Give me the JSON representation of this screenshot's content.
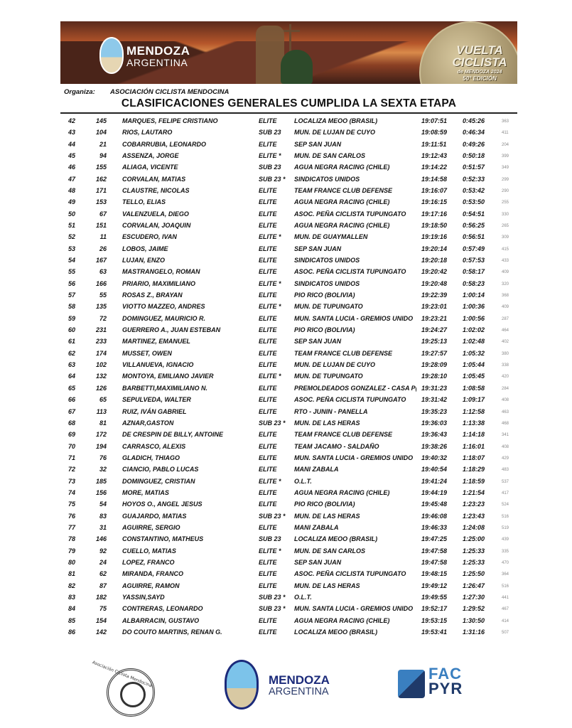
{
  "banner": {
    "logo_line1": "MENDOZA",
    "logo_line2": "ARGENTINA",
    "medal_line1": "VUELTA",
    "medal_line2": "CICLISTA",
    "medal_line3": "de MENDOZA 2024",
    "medal_line4": "50° EDICIÓN"
  },
  "header": {
    "organiza_label": "Organiza:",
    "organiza_value": "ASOCIACIÓN CICLISTA MENDOCINA",
    "title": "CLASIFICACIONES GENERALES CUMPLIDA LA SEXTA ETAPA"
  },
  "rows": [
    [
      "42",
      "145",
      "MARQUES, FELIPE CRISTIANO",
      "ELITE",
      "LOCALIZA MEOO (BRASIL)",
      "19:07:51",
      "0:45:26",
      "363"
    ],
    [
      "43",
      "104",
      "RIOS, LAUTARO",
      "SUB 23",
      "MUN. DE LUJAN DE CUYO",
      "19:08:59",
      "0:46:34",
      "411"
    ],
    [
      "44",
      "21",
      "COBARRUBIA, LEONARDO",
      "ELITE",
      "SEP SAN JUAN",
      "19:11:51",
      "0:49:26",
      "204"
    ],
    [
      "45",
      "94",
      "ASSENZA, JORGE",
      "ELITE *",
      "MUN. DE SAN CARLOS",
      "19:12:43",
      "0:50:18",
      "399"
    ],
    [
      "46",
      "155",
      "ALIAGA, VICENTE",
      "SUB 23",
      "AGUA NEGRA RACING (CHILE)",
      "19:14:22",
      "0:51:57",
      "349"
    ],
    [
      "47",
      "162",
      "CORVALAN, MATIAS",
      "SUB 23 *",
      "SINDICATOS UNIDOS",
      "19:14:58",
      "0:52:33",
      "299"
    ],
    [
      "48",
      "171",
      "CLAUSTRE, NICOLAS",
      "ELITE",
      "TEAM FRANCE CLUB DEFENSE",
      "19:16:07",
      "0:53:42",
      "290"
    ],
    [
      "49",
      "153",
      "TELLO, ELIAS",
      "ELITE",
      "AGUA NEGRA RACING (CHILE)",
      "19:16:15",
      "0:53:50",
      "255"
    ],
    [
      "50",
      "67",
      "VALENZUELA, DIEGO",
      "ELITE",
      "ASOC. PEÑA CICLISTA TUPUNGATO",
      "19:17:16",
      "0:54:51",
      "330"
    ],
    [
      "51",
      "151",
      "CORVALAN, JOAQUIN",
      "ELITE",
      "AGUA NEGRA RACING (CHILE)",
      "19:18:50",
      "0:56:25",
      "265"
    ],
    [
      "52",
      "11",
      "ESCUDERO, IVAN",
      "ELITE *",
      "MUN. DE GUAYMALLEN",
      "19:19:16",
      "0:56:51",
      "309"
    ],
    [
      "53",
      "26",
      "LOBOS, JAIME",
      "ELITE",
      "SEP SAN JUAN",
      "19:20:14",
      "0:57:49",
      "415"
    ],
    [
      "54",
      "167",
      "LUJAN, ENZO",
      "ELITE",
      "SINDICATOS UNIDOS",
      "19:20:18",
      "0:57:53",
      "433"
    ],
    [
      "55",
      "63",
      "MASTRANGELO, ROMAN",
      "ELITE",
      "ASOC. PEÑA CICLISTA TUPUNGATO",
      "19:20:42",
      "0:58:17",
      "409"
    ],
    [
      "56",
      "166",
      "PRIARIO, MAXIMILIANO",
      "ELITE *",
      "SINDICATOS UNIDOS",
      "19:20:48",
      "0:58:23",
      "320"
    ],
    [
      "57",
      "55",
      "ROSAS Z., BRAYAN",
      "ELITE",
      "PIO RICO (BOLIVIA)",
      "19:22:39",
      "1:00:14",
      "368"
    ],
    [
      "58",
      "135",
      "VIOTTO MAZZEO, ANDRES",
      "ELITE *",
      "MUN. DE TUPUNGATO",
      "19:23:01",
      "1:00:36",
      "409"
    ],
    [
      "59",
      "72",
      "DOMINGUEZ, MAURICIO R.",
      "ELITE",
      "MUN. SANTA LUCIA - GREMIOS UNIDO",
      "19:23:21",
      "1:00:56",
      "287"
    ],
    [
      "60",
      "231",
      "GUERRERO A., JUAN ESTEBAN",
      "ELITE",
      "PIO RICO (BOLIVIA)",
      "19:24:27",
      "1:02:02",
      "464"
    ],
    [
      "61",
      "233",
      "MARTINEZ, EMANUEL",
      "ELITE",
      "SEP SAN JUAN",
      "19:25:13",
      "1:02:48",
      "402"
    ],
    [
      "62",
      "174",
      "MUSSET, OWEN",
      "ELITE",
      "TEAM FRANCE CLUB DEFENSE",
      "19:27:57",
      "1:05:32",
      "380"
    ],
    [
      "63",
      "102",
      "VILLANUEVA, IGNACIO",
      "ELITE",
      "MUN. DE LUJAN DE CUYO",
      "19:28:09",
      "1:05:44",
      "338"
    ],
    [
      "64",
      "132",
      "MONTOYA, EMILIANO JAVIER",
      "ELITE *",
      "MUN. DE TUPUNGATO",
      "19:28:10",
      "1:05:45",
      "420"
    ],
    [
      "65",
      "126",
      "BARBETTI,MAXIMILIANO N.",
      "ELITE",
      "PREMOLDEADOS GONZALEZ - CASA P(",
      "19:31:23",
      "1:08:58",
      "284"
    ],
    [
      "66",
      "65",
      "SEPULVEDA, WALTER",
      "ELITE",
      "ASOC. PEÑA CICLISTA TUPUNGATO",
      "19:31:42",
      "1:09:17",
      "408"
    ],
    [
      "67",
      "113",
      "RUIZ, IVÁN GABRIEL",
      "ELITE",
      "RTO - JUNIN - PANELLA",
      "19:35:23",
      "1:12:58",
      "463"
    ],
    [
      "68",
      "81",
      "AZNAR,GASTON",
      "SUB 23 *",
      "MUN. DE LAS HERAS",
      "19:36:03",
      "1:13:38",
      "468"
    ],
    [
      "69",
      "172",
      "DE CRESPIN DE BILLY, ANTOINE",
      "ELITE",
      "TEAM FRANCE CLUB DEFENSE",
      "19:36:43",
      "1:14:18",
      "341"
    ],
    [
      "70",
      "194",
      "CARRASCO, ALEXIS",
      "ELITE",
      "TEAM JACAMO - SALDAÑO",
      "19:38:26",
      "1:16:01",
      "408"
    ],
    [
      "71",
      "76",
      "GLADICH, THIAGO",
      "ELITE",
      "MUN. SANTA LUCIA - GREMIOS UNIDO",
      "19:40:32",
      "1:18:07",
      "429"
    ],
    [
      "72",
      "32",
      "CIANCIO, PABLO LUCAS",
      "ELITE",
      "MANI ZABALA",
      "19:40:54",
      "1:18:29",
      "483"
    ],
    [
      "73",
      "185",
      "DOMINGUEZ, CRISTIAN",
      "ELITE *",
      "O.L.T.",
      "19:41:24",
      "1:18:59",
      "537"
    ],
    [
      "74",
      "156",
      "MORE, MATIAS",
      "ELITE",
      "AGUA NEGRA RACING (CHILE)",
      "19:44:19",
      "1:21:54",
      "417"
    ],
    [
      "75",
      "54",
      "HOYOS O., ANGEL JESUS",
      "ELITE",
      "PIO RICO (BOLIVIA)",
      "19:45:48",
      "1:23:23",
      "524"
    ],
    [
      "76",
      "83",
      "GUAJARDO, MATIAS",
      "SUB 23 *",
      "MUN. DE LAS HERAS",
      "19:46:08",
      "1:23:43",
      "516"
    ],
    [
      "77",
      "31",
      "AGUIRRE, SERGIO",
      "ELITE",
      "MANI ZABALA",
      "19:46:33",
      "1:24:08",
      "519"
    ],
    [
      "78",
      "146",
      "CONSTANTINO, MATHEUS",
      "SUB 23",
      "LOCALIZA MEOO (BRASIL)",
      "19:47:25",
      "1:25:00",
      "439"
    ],
    [
      "79",
      "92",
      "CUELLO, MATIAS",
      "ELITE *",
      "MUN. DE SAN CARLOS",
      "19:47:58",
      "1:25:33",
      "335"
    ],
    [
      "80",
      "24",
      "LOPEZ, FRANCO",
      "ELITE",
      "SEP SAN JUAN",
      "19:47:58",
      "1:25:33",
      "470"
    ],
    [
      "81",
      "62",
      "MIRANDA, FRANCO",
      "ELITE",
      "ASOC. PEÑA CICLISTA TUPUNGATO",
      "19:48:15",
      "1:25:50",
      "364"
    ],
    [
      "82",
      "87",
      "AGUIRRE, RAMON",
      "ELITE",
      "MUN. DE LAS HERAS",
      "19:49:12",
      "1:26:47",
      "516"
    ],
    [
      "83",
      "182",
      "YASSIN,SAYD",
      "SUB 23 *",
      "O.L.T.",
      "19:49:55",
      "1:27:30",
      "441"
    ],
    [
      "84",
      "75",
      "CONTRERAS, LEONARDO",
      "SUB 23 *",
      "MUN. SANTA LUCIA - GREMIOS UNIDO",
      "19:52:17",
      "1:29:52",
      "467"
    ],
    [
      "85",
      "154",
      "ALBARRACIN, GUSTAVO",
      "ELITE",
      "AGUA NEGRA RACING (CHILE)",
      "19:53:15",
      "1:30:50",
      "414"
    ],
    [
      "86",
      "142",
      "DO COUTO MARTINS, RENAN G.",
      "ELITE",
      "LOCALIZA MEOO (BRASIL)",
      "19:53:41",
      "1:31:16",
      "507"
    ]
  ],
  "footer": {
    "acm_ring_text": "Asociación Ciclista Mendocina",
    "mendoza_line1": "MENDOZA",
    "mendoza_line2": "ARGENTINA",
    "fac_line1": "FAC",
    "fac_line2": "PYR"
  }
}
